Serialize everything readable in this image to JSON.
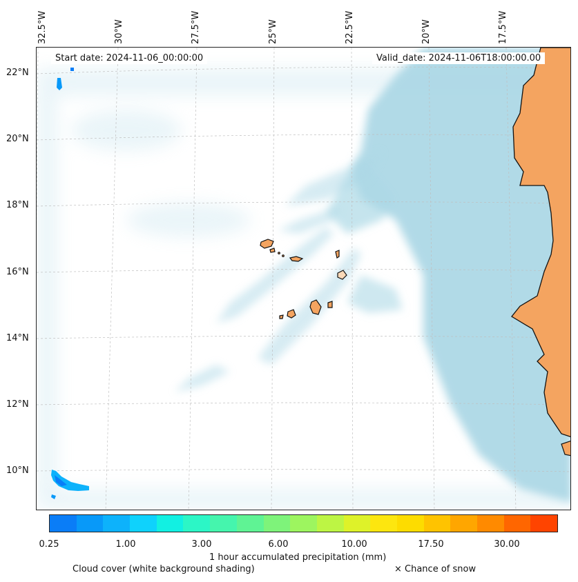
{
  "header": {
    "start_date": "Start date: 2024-11-06_00:00:00",
    "valid_date": "Valid_date: 2024-11-06T18:00:00.00"
  },
  "axes": {
    "lon_labels": [
      "32.5°W",
      "30°W",
      "27.5°W",
      "25°W",
      "22.5°W",
      "20°W",
      "17.5°W"
    ],
    "lat_labels": [
      "22°N",
      "20°N",
      "18°N",
      "16°N",
      "14°N",
      "12°N",
      "10°N"
    ]
  },
  "colorbar": {
    "title": "1 hour accumulated precipitation (mm)",
    "tick_labels": [
      "0.25",
      "1.00",
      "3.00",
      "6.00",
      "10.00",
      "17.50",
      "30.00"
    ],
    "colors": [
      "#0a7df7",
      "#0899f9",
      "#0db2fb",
      "#0fd2fc",
      "#12f0e2",
      "#2cf6c6",
      "#45f5ad",
      "#5ff394",
      "#7ef37a",
      "#9df55f",
      "#bdf544",
      "#def229",
      "#fde60f",
      "#fddc00",
      "#ffc300",
      "#ffa600",
      "#ff8a00",
      "#ff6600",
      "#ff4400"
    ]
  },
  "legend": {
    "cloud_text": "Cloud cover (white background shading)",
    "snow_text": "× Chance of snow"
  },
  "map": {
    "land_color": "#f4a460",
    "cloud_color": "#add8e6",
    "precip_color": "#0a7df7",
    "features": [
      "West African coast",
      "Cape Verde islands"
    ]
  }
}
